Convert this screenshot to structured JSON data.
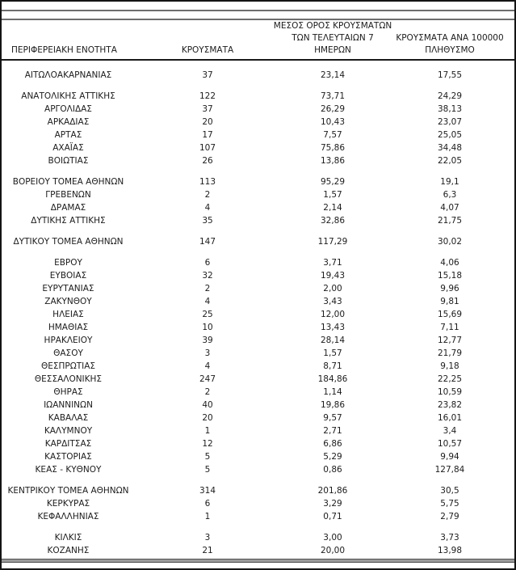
{
  "header": {
    "col1": "ΠΕΡΙΦΕΡΕΙΑΚΗ ΕΝΟΤΗΤΑ",
    "col2": "ΚΡΟΥΣΜΑΤΑ",
    "col3_lines": [
      "ΜΕΣΟΣ ΟΡΟΣ ΚΡΟΥΣΜΑΤΩΝ",
      "ΤΩΝ ΤΕΛΕΥΤΑΙΩΝ 7",
      "ΗΜΕΡΩΝ"
    ],
    "col4_lines": [
      "ΚΡΟΥΣΜΑΤΑ ΑΝΑ 100000",
      "ΠΛΗΘΥΣΜΟ"
    ]
  },
  "table": {
    "groups": [
      {
        "rows": [
          {
            "name": "ΑΙΤΩΛΟΑΚΑΡΝΑΝΙΑΣ",
            "cases": "37",
            "avg7": "23,14",
            "per100k": "17,55"
          }
        ]
      },
      {
        "rows": [
          {
            "name": "ΑΝΑΤΟΛΙΚΗΣ ΑΤΤΙΚΗΣ",
            "cases": "122",
            "avg7": "73,71",
            "per100k": "24,29"
          },
          {
            "name": "ΑΡΓΟΛΙΔΑΣ",
            "cases": "37",
            "avg7": "26,29",
            "per100k": "38,13"
          },
          {
            "name": "ΑΡΚΑΔΙΑΣ",
            "cases": "20",
            "avg7": "10,43",
            "per100k": "23,07"
          },
          {
            "name": "ΑΡΤΑΣ",
            "cases": "17",
            "avg7": "7,57",
            "per100k": "25,05"
          },
          {
            "name": "ΑΧΑΪΑΣ",
            "cases": "107",
            "avg7": "75,86",
            "per100k": "34,48"
          },
          {
            "name": "ΒΟΙΩΤΙΑΣ",
            "cases": "26",
            "avg7": "13,86",
            "per100k": "22,05"
          }
        ]
      },
      {
        "rows": [
          {
            "name": "ΒΟΡΕΙΟΥ ΤΟΜΕΑ ΑΘΗΝΩΝ",
            "cases": "113",
            "avg7": "95,29",
            "per100k": "19,1"
          },
          {
            "name": "ΓΡΕΒΕΝΩΝ",
            "cases": "2",
            "avg7": "1,57",
            "per100k": "6,3"
          },
          {
            "name": "ΔΡΑΜΑΣ",
            "cases": "4",
            "avg7": "2,14",
            "per100k": "4,07"
          },
          {
            "name": "ΔΥΤΙΚΗΣ ΑΤΤΙΚΗΣ",
            "cases": "35",
            "avg7": "32,86",
            "per100k": "21,75"
          }
        ]
      },
      {
        "rows": [
          {
            "name": "ΔΥΤΙΚΟΥ ΤΟΜΕΑ ΑΘΗΝΩΝ",
            "cases": "147",
            "avg7": "117,29",
            "per100k": "30,02"
          }
        ]
      },
      {
        "rows": [
          {
            "name": "ΕΒΡΟΥ",
            "cases": "6",
            "avg7": "3,71",
            "per100k": "4,06"
          },
          {
            "name": "ΕΥΒΟΙΑΣ",
            "cases": "32",
            "avg7": "19,43",
            "per100k": "15,18"
          },
          {
            "name": "ΕΥΡΥΤΑΝΙΑΣ",
            "cases": "2",
            "avg7": "2,00",
            "per100k": "9,96"
          },
          {
            "name": "ΖΑΚΥΝΘΟΥ",
            "cases": "4",
            "avg7": "3,43",
            "per100k": "9,81"
          },
          {
            "name": "ΗΛΕΙΑΣ",
            "cases": "25",
            "avg7": "12,00",
            "per100k": "15,69"
          },
          {
            "name": "ΗΜΑΘΙΑΣ",
            "cases": "10",
            "avg7": "13,43",
            "per100k": "7,11"
          },
          {
            "name": "ΗΡΑΚΛΕΙΟΥ",
            "cases": "39",
            "avg7": "28,14",
            "per100k": "12,77"
          },
          {
            "name": "ΘΑΣΟΥ",
            "cases": "3",
            "avg7": "1,57",
            "per100k": "21,79"
          },
          {
            "name": "ΘΕΣΠΡΩΤΙΑΣ",
            "cases": "4",
            "avg7": "8,71",
            "per100k": "9,18"
          },
          {
            "name": "ΘΕΣΣΑΛΟΝΙΚΗΣ",
            "cases": "247",
            "avg7": "184,86",
            "per100k": "22,25"
          },
          {
            "name": "ΘΗΡΑΣ",
            "cases": "2",
            "avg7": "1,14",
            "per100k": "10,59"
          },
          {
            "name": "ΙΩΑΝΝΙΝΩΝ",
            "cases": "40",
            "avg7": "19,86",
            "per100k": "23,82"
          },
          {
            "name": "ΚΑΒΑΛΑΣ",
            "cases": "20",
            "avg7": "9,57",
            "per100k": "16,01"
          },
          {
            "name": "ΚΑΛΥΜΝΟΥ",
            "cases": "1",
            "avg7": "2,71",
            "per100k": "3,4"
          },
          {
            "name": "ΚΑΡΔΙΤΣΑΣ",
            "cases": "12",
            "avg7": "6,86",
            "per100k": "10,57"
          },
          {
            "name": "ΚΑΣΤΟΡΙΑΣ",
            "cases": "5",
            "avg7": "5,29",
            "per100k": "9,94"
          },
          {
            "name": "ΚΕΑΣ - ΚΥΘΝΟΥ",
            "cases": "5",
            "avg7": "0,86",
            "per100k": "127,84"
          }
        ]
      },
      {
        "rows": [
          {
            "name": "ΚΕΝΤΡΙΚΟΥ ΤΟΜΕΑ ΑΘΗΝΩΝ",
            "cases": "314",
            "avg7": "201,86",
            "per100k": "30,5"
          },
          {
            "name": "ΚΕΡΚΥΡΑΣ",
            "cases": "6",
            "avg7": "3,29",
            "per100k": "5,75"
          },
          {
            "name": "ΚΕΦΑΛΛΗΝΙΑΣ",
            "cases": "1",
            "avg7": "0,71",
            "per100k": "2,79"
          }
        ]
      },
      {
        "rows": [
          {
            "name": "ΚΙΛΚΙΣ",
            "cases": "3",
            "avg7": "3,00",
            "per100k": "3,73"
          },
          {
            "name": "ΚΟΖΑΝΗΣ",
            "cases": "21",
            "avg7": "20,00",
            "per100k": "13,98"
          }
        ]
      }
    ]
  },
  "colors": {
    "text": "#1c1c1c",
    "outer_border": "#141414",
    "gray_rule": "#6e6e6e",
    "bottom_rule_fill": "#9a9a9a"
  }
}
